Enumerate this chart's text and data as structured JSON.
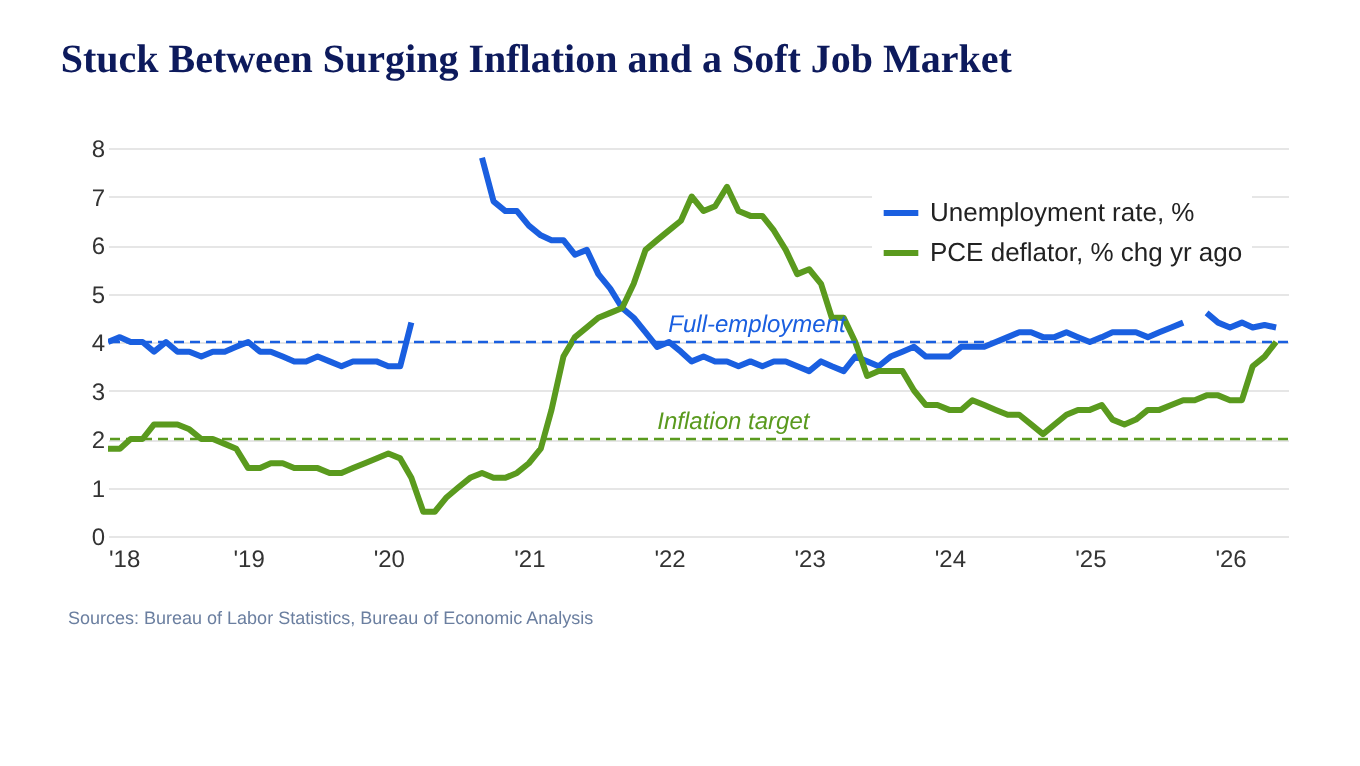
{
  "chart_data": {
    "type": "line",
    "title": "Stuck Between Surging Inflation and a Soft Job Market",
    "x": [
      "2018-01",
      "2018-02",
      "2018-03",
      "2018-04",
      "2018-05",
      "2018-06",
      "2018-07",
      "2018-08",
      "2018-09",
      "2018-10",
      "2018-11",
      "2018-12",
      "2019-01",
      "2019-02",
      "2019-03",
      "2019-04",
      "2019-05",
      "2019-06",
      "2019-07",
      "2019-08",
      "2019-09",
      "2019-10",
      "2019-11",
      "2019-12",
      "2020-01",
      "2020-02",
      "2020-03",
      "2020-04",
      "2020-05",
      "2020-06",
      "2020-07",
      "2020-08",
      "2020-09",
      "2020-10",
      "2020-11",
      "2020-12",
      "2021-01",
      "2021-02",
      "2021-03",
      "2021-04",
      "2021-05",
      "2021-06",
      "2021-07",
      "2021-08",
      "2021-09",
      "2021-10",
      "2021-11",
      "2021-12",
      "2022-01",
      "2022-02",
      "2022-03",
      "2022-04",
      "2022-05",
      "2022-06",
      "2022-07",
      "2022-08",
      "2022-09",
      "2022-10",
      "2022-11",
      "2022-12",
      "2023-01",
      "2023-02",
      "2023-03",
      "2023-04",
      "2023-05",
      "2023-06",
      "2023-07",
      "2023-08",
      "2023-09",
      "2023-10",
      "2023-11",
      "2023-12",
      "2024-01",
      "2024-02",
      "2024-03",
      "2024-04",
      "2024-05",
      "2024-06",
      "2024-07",
      "2024-08",
      "2024-09",
      "2024-10",
      "2024-11",
      "2024-12",
      "2025-01",
      "2025-02",
      "2025-03",
      "2025-04",
      "2025-05",
      "2025-06",
      "2025-07",
      "2025-08",
      "2025-09",
      "2025-10",
      "2025-11",
      "2025-12",
      "2026-01",
      "2026-02",
      "2026-03",
      "2026-04",
      "2026-05"
    ],
    "series": [
      {
        "name": "Unemployment rate, %",
        "color": "#1a5fe0",
        "values": [
          4.0,
          4.1,
          4.0,
          4.0,
          3.8,
          4.0,
          3.8,
          3.8,
          3.7,
          3.8,
          3.8,
          3.9,
          4.0,
          3.8,
          3.8,
          3.7,
          3.6,
          3.6,
          3.7,
          3.6,
          3.5,
          3.6,
          3.6,
          3.6,
          3.5,
          3.5,
          4.4,
          null,
          null,
          null,
          null,
          null,
          7.8,
          6.9,
          6.7,
          6.7,
          6.4,
          6.2,
          6.1,
          6.1,
          5.8,
          5.9,
          5.4,
          5.1,
          4.7,
          4.5,
          4.2,
          3.9,
          4.0,
          3.8,
          3.6,
          3.7,
          3.6,
          3.6,
          3.5,
          3.6,
          3.5,
          3.6,
          3.6,
          3.5,
          3.4,
          3.6,
          3.5,
          3.4,
          3.7,
          3.6,
          3.5,
          3.7,
          3.8,
          3.9,
          3.7,
          3.7,
          3.7,
          3.9,
          3.9,
          3.9,
          4.0,
          4.1,
          4.2,
          4.2,
          4.1,
          4.1,
          4.2,
          4.1,
          4.0,
          4.1,
          4.2,
          4.2,
          4.2,
          4.1,
          4.2,
          4.3,
          4.4,
          null,
          4.6,
          4.4,
          4.3,
          4.4,
          4.3,
          4.35,
          4.3
        ]
      },
      {
        "name": "PCE deflator, % chg yr ago",
        "color": "#5a9a1e",
        "values": [
          1.8,
          1.8,
          2.0,
          2.0,
          2.3,
          2.3,
          2.3,
          2.2,
          2.0,
          2.0,
          1.9,
          1.8,
          1.4,
          1.4,
          1.5,
          1.5,
          1.4,
          1.4,
          1.4,
          1.3,
          1.3,
          1.4,
          1.5,
          1.6,
          1.7,
          1.6,
          1.2,
          0.5,
          0.5,
          0.8,
          1.0,
          1.2,
          1.3,
          1.2,
          1.2,
          1.3,
          1.5,
          1.8,
          2.6,
          3.7,
          4.1,
          4.3,
          4.5,
          4.6,
          4.7,
          5.2,
          5.9,
          6.1,
          6.3,
          6.5,
          7.0,
          6.7,
          6.8,
          7.2,
          6.7,
          6.6,
          6.6,
          6.3,
          5.9,
          5.4,
          5.5,
          5.2,
          4.5,
          4.5,
          4.0,
          3.3,
          3.4,
          3.4,
          3.4,
          3.0,
          2.7,
          2.7,
          2.6,
          2.6,
          2.8,
          2.7,
          2.6,
          2.5,
          2.5,
          2.3,
          2.1,
          2.3,
          2.5,
          2.6,
          2.6,
          2.7,
          2.4,
          2.3,
          2.4,
          2.6,
          2.6,
          2.7,
          2.8,
          2.8,
          2.9,
          2.9,
          2.8,
          2.8,
          3.5,
          3.7,
          4.0
        ]
      }
    ],
    "xlim": [
      "2018-01",
      "2026-06"
    ],
    "xticks": [
      {
        "value": "2018-01",
        "label": "'18"
      },
      {
        "value": "2019-01",
        "label": "'19"
      },
      {
        "value": "2020-01",
        "label": "'20"
      },
      {
        "value": "2021-01",
        "label": "'21"
      },
      {
        "value": "2022-01",
        "label": "'22"
      },
      {
        "value": "2023-01",
        "label": "'23"
      },
      {
        "value": "2024-01",
        "label": "'24"
      },
      {
        "value": "2025-01",
        "label": "'25"
      },
      {
        "value": "2026-01",
        "label": "'26"
      }
    ],
    "ylim": [
      0,
      8
    ],
    "yticks": [
      0,
      1,
      2,
      3,
      4,
      5,
      6,
      7,
      8
    ],
    "ref_lines": [
      {
        "axis": "y",
        "value": 4,
        "label": "Full-employment",
        "color": "#1a5fe0",
        "line_style": "dashed"
      },
      {
        "axis": "y",
        "value": 2,
        "label": "Inflation target",
        "color": "#5a9a1e",
        "line_style": "dashed"
      }
    ],
    "grid": "y",
    "legend": "top right",
    "marker": "none",
    "line_style": "solid",
    "annotations": [
      "Sources: Bureau of Labor Statistics, Bureau of Economic Analysis"
    ]
  }
}
